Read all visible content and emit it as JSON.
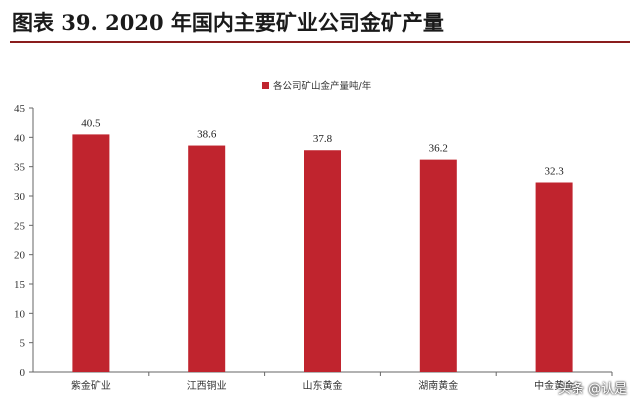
{
  "header": {
    "title": "图表 39. 2020 年国内主要矿业公司金矿产量"
  },
  "watermark": {
    "text": "头条 @认是"
  },
  "chart_data": {
    "type": "bar",
    "categories": [
      "紫金矿业",
      "江西铜业",
      "山东黄金",
      "湖南黄金",
      "中金黄金"
    ],
    "series": [
      {
        "name": "各公司矿山金产量吨/年",
        "values": [
          40.5,
          38.6,
          37.8,
          36.2,
          32.3
        ]
      }
    ],
    "data_labels": [
      "40.5",
      "38.6",
      "37.8",
      "36.2",
      "32.3"
    ],
    "ylim": [
      0,
      45
    ],
    "yticks": [
      0,
      5,
      10,
      15,
      20,
      25,
      30,
      35,
      40,
      45
    ],
    "grid": false,
    "legend": "top-center",
    "colors": {
      "bar": "#c0242e"
    }
  }
}
